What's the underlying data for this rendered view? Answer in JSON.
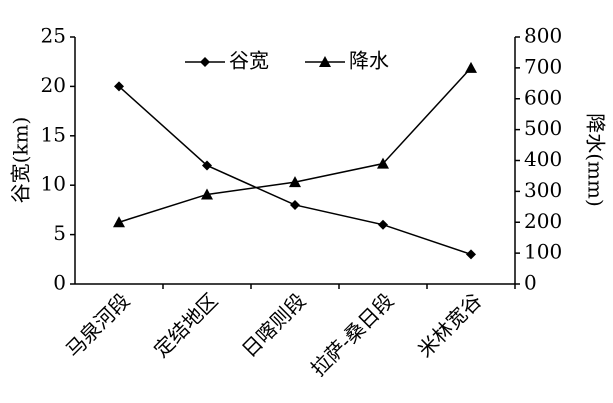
{
  "chart_data": {
    "type": "line",
    "categories": [
      "马泉河段",
      "定结地区",
      "日喀则段",
      "拉萨-桑日段",
      "米林宽谷"
    ],
    "y_label": "谷宽(km)",
    "y2_label": "降水(mm)",
    "ylim": [
      0,
      25
    ],
    "yticks": [
      0,
      5,
      10,
      15,
      20,
      25
    ],
    "y2lim": [
      0,
      800
    ],
    "y2ticks": [
      0,
      100,
      200,
      300,
      400,
      500,
      600,
      700,
      800
    ],
    "series": [
      {
        "name": "谷宽",
        "color": "#000000",
        "marker": "diamond",
        "values": [
          20,
          12,
          8,
          6,
          3
        ]
      },
      {
        "name": "降水",
        "color": "#000000",
        "marker": "triangle",
        "axis": "y2",
        "values": [
          200,
          290,
          330,
          390,
          700
        ]
      }
    ]
  }
}
